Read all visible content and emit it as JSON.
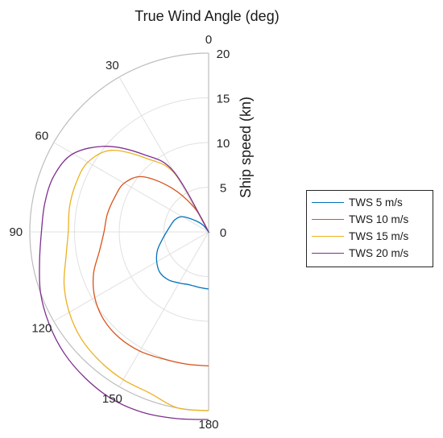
{
  "chart_data": {
    "type": "line",
    "subtype": "polar",
    "title": "True Wind Angle (deg)",
    "rlabel": "Ship speed (kn)",
    "theta_ticks": [
      "0",
      "30",
      "60",
      "90",
      "120",
      "150",
      "180"
    ],
    "theta_tick_values": [
      0,
      30,
      60,
      90,
      120,
      150,
      180
    ],
    "r_ticks": [
      "0",
      "5",
      "10",
      "15",
      "20"
    ],
    "r_tick_values": [
      0,
      5,
      10,
      15,
      20
    ],
    "theta_range": [
      0,
      180
    ],
    "r_range": [
      0,
      20
    ],
    "grid": true,
    "legend_position": "right",
    "theta": [
      30,
      40,
      50,
      60,
      70,
      80,
      90,
      100,
      110,
      120,
      130,
      140,
      150,
      160,
      170,
      180
    ],
    "series": [
      {
        "name": "TWS 5 m/s",
        "color": "#0072BD",
        "r": [
          0.0,
          1.0,
          2.0,
          3.4,
          4.0,
          4.3,
          4.7,
          5.3,
          6.1,
          6.7,
          7.1,
          7.0,
          6.6,
          6.3,
          6.3,
          6.4
        ]
      },
      {
        "name": "TWS 10 m/s",
        "color": "#D95319",
        "r": [
          3.0,
          6.4,
          9.6,
          10.9,
          11.2,
          11.5,
          11.7,
          12.4,
          13.7,
          14.7,
          15.3,
          15.5,
          15.4,
          15.1,
          15.0,
          15.0
        ]
      },
      {
        "name": "TWS 15 m/s",
        "color": "#EDB120",
        "r": [
          7.4,
          10.7,
          14.2,
          15.6,
          15.8,
          15.8,
          15.7,
          16.2,
          17.2,
          18.0,
          18.6,
          18.9,
          19.1,
          19.2,
          20.0,
          20.0
        ]
      },
      {
        "name": "TWS 20 m/s",
        "color": "#7E2F8E",
        "r": [
          7.8,
          11.3,
          14.9,
          17.5,
          18.4,
          18.6,
          18.7,
          19.2,
          20.0,
          20.6,
          21.1,
          21.4,
          21.6,
          21.5,
          21.2,
          21.0
        ]
      }
    ]
  }
}
